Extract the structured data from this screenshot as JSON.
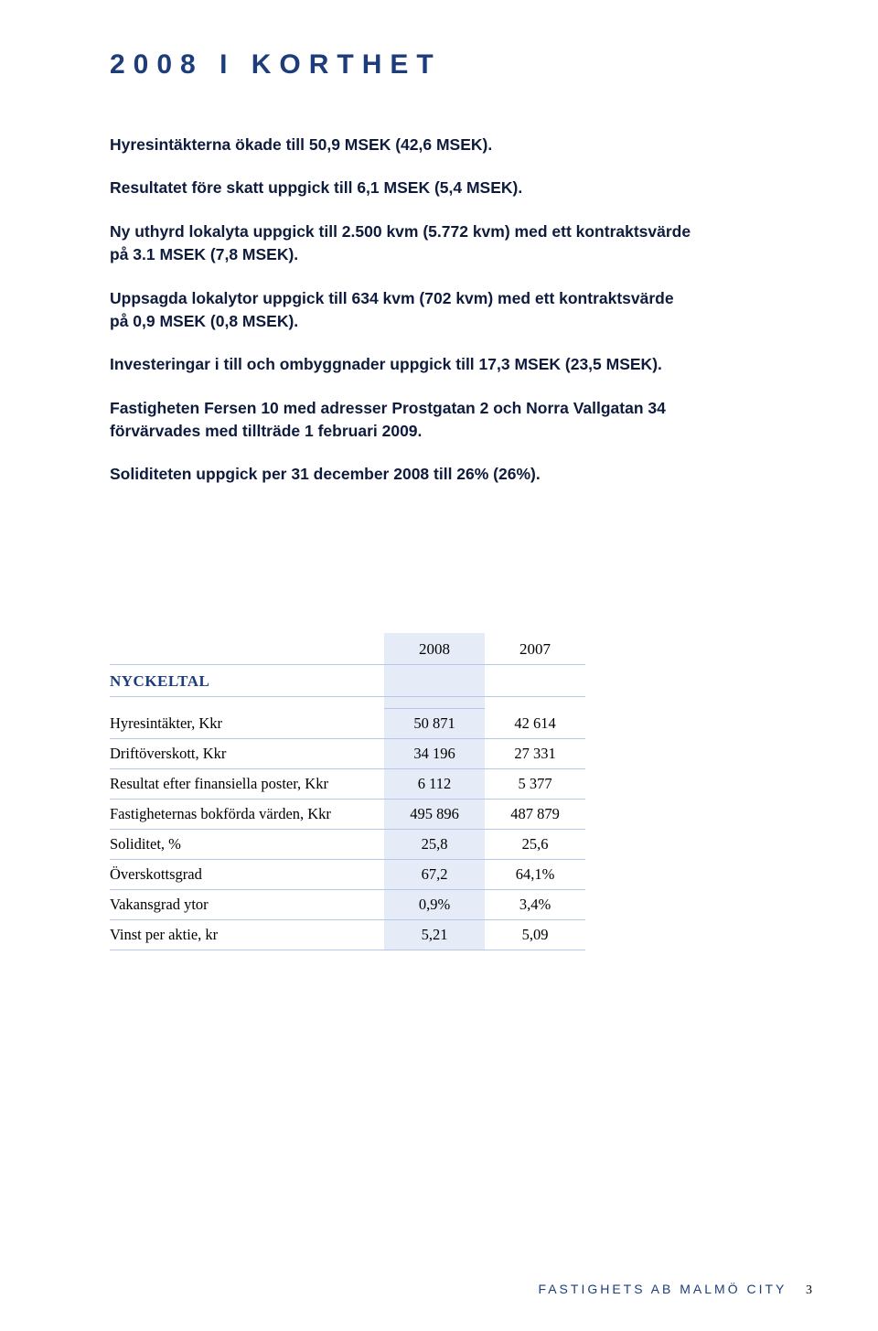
{
  "title": "2008 I KORTHET",
  "paragraphs": [
    "Hyresintäkterna ökade till 50,9 MSEK (42,6 MSEK).",
    "Resultatet före skatt uppgick till 6,1 MSEK (5,4 MSEK).",
    "Ny uthyrd lokalyta uppgick till 2.500 kvm (5.772 kvm) med ett kontraktsvärde på 3.1 MSEK (7,8 MSEK).",
    "Uppsagda lokalytor uppgick till 634 kvm (702 kvm) med ett kontraktsvärde på 0,9 MSEK (0,8 MSEK).",
    "Investeringar i till och ombyggnader uppgick till 17,3 MSEK (23,5 MSEK).",
    "Fastigheten Fersen 10 med adresser Prostgatan 2 och Norra Vallgatan 34 förvärvades med tillträde 1 februari 2009.",
    "Soliditeten uppgick per 31 december 2008 till 26% (26%)."
  ],
  "table": {
    "header_label": "NYCKELTAL",
    "years": [
      "2008",
      "2007"
    ],
    "rows": [
      {
        "label": "Hyresintäkter, Kkr",
        "v1": "50 871",
        "v2": "42 614"
      },
      {
        "label": "Driftöverskott, Kkr",
        "v1": "34 196",
        "v2": "27 331"
      },
      {
        "label": "Resultat efter finansiella poster, Kkr",
        "v1": "6 112",
        "v2": "5 377"
      },
      {
        "label": "Fastigheternas bokförda värden, Kkr",
        "v1": "495 896",
        "v2": "487 879"
      },
      {
        "label": "Soliditet, %",
        "v1": "25,8",
        "v2": "25,6"
      },
      {
        "label": "Överskottsgrad",
        "v1": "67,2",
        "v2": "64,1%"
      },
      {
        "label": "Vakansgrad ytor",
        "v1": "0,9%",
        "v2": "3,4%"
      },
      {
        "label": "Vinst per aktie, kr",
        "v1": "5,21",
        "v2": "5,09"
      }
    ]
  },
  "footer": {
    "text": "FASTIGHETS AB MALMÖ CITY",
    "page": "3"
  },
  "colors": {
    "brand": "#1d3d7a",
    "body": "#0f1b3d",
    "band": "#e6ecf7",
    "rule": "#b6c6e6"
  }
}
